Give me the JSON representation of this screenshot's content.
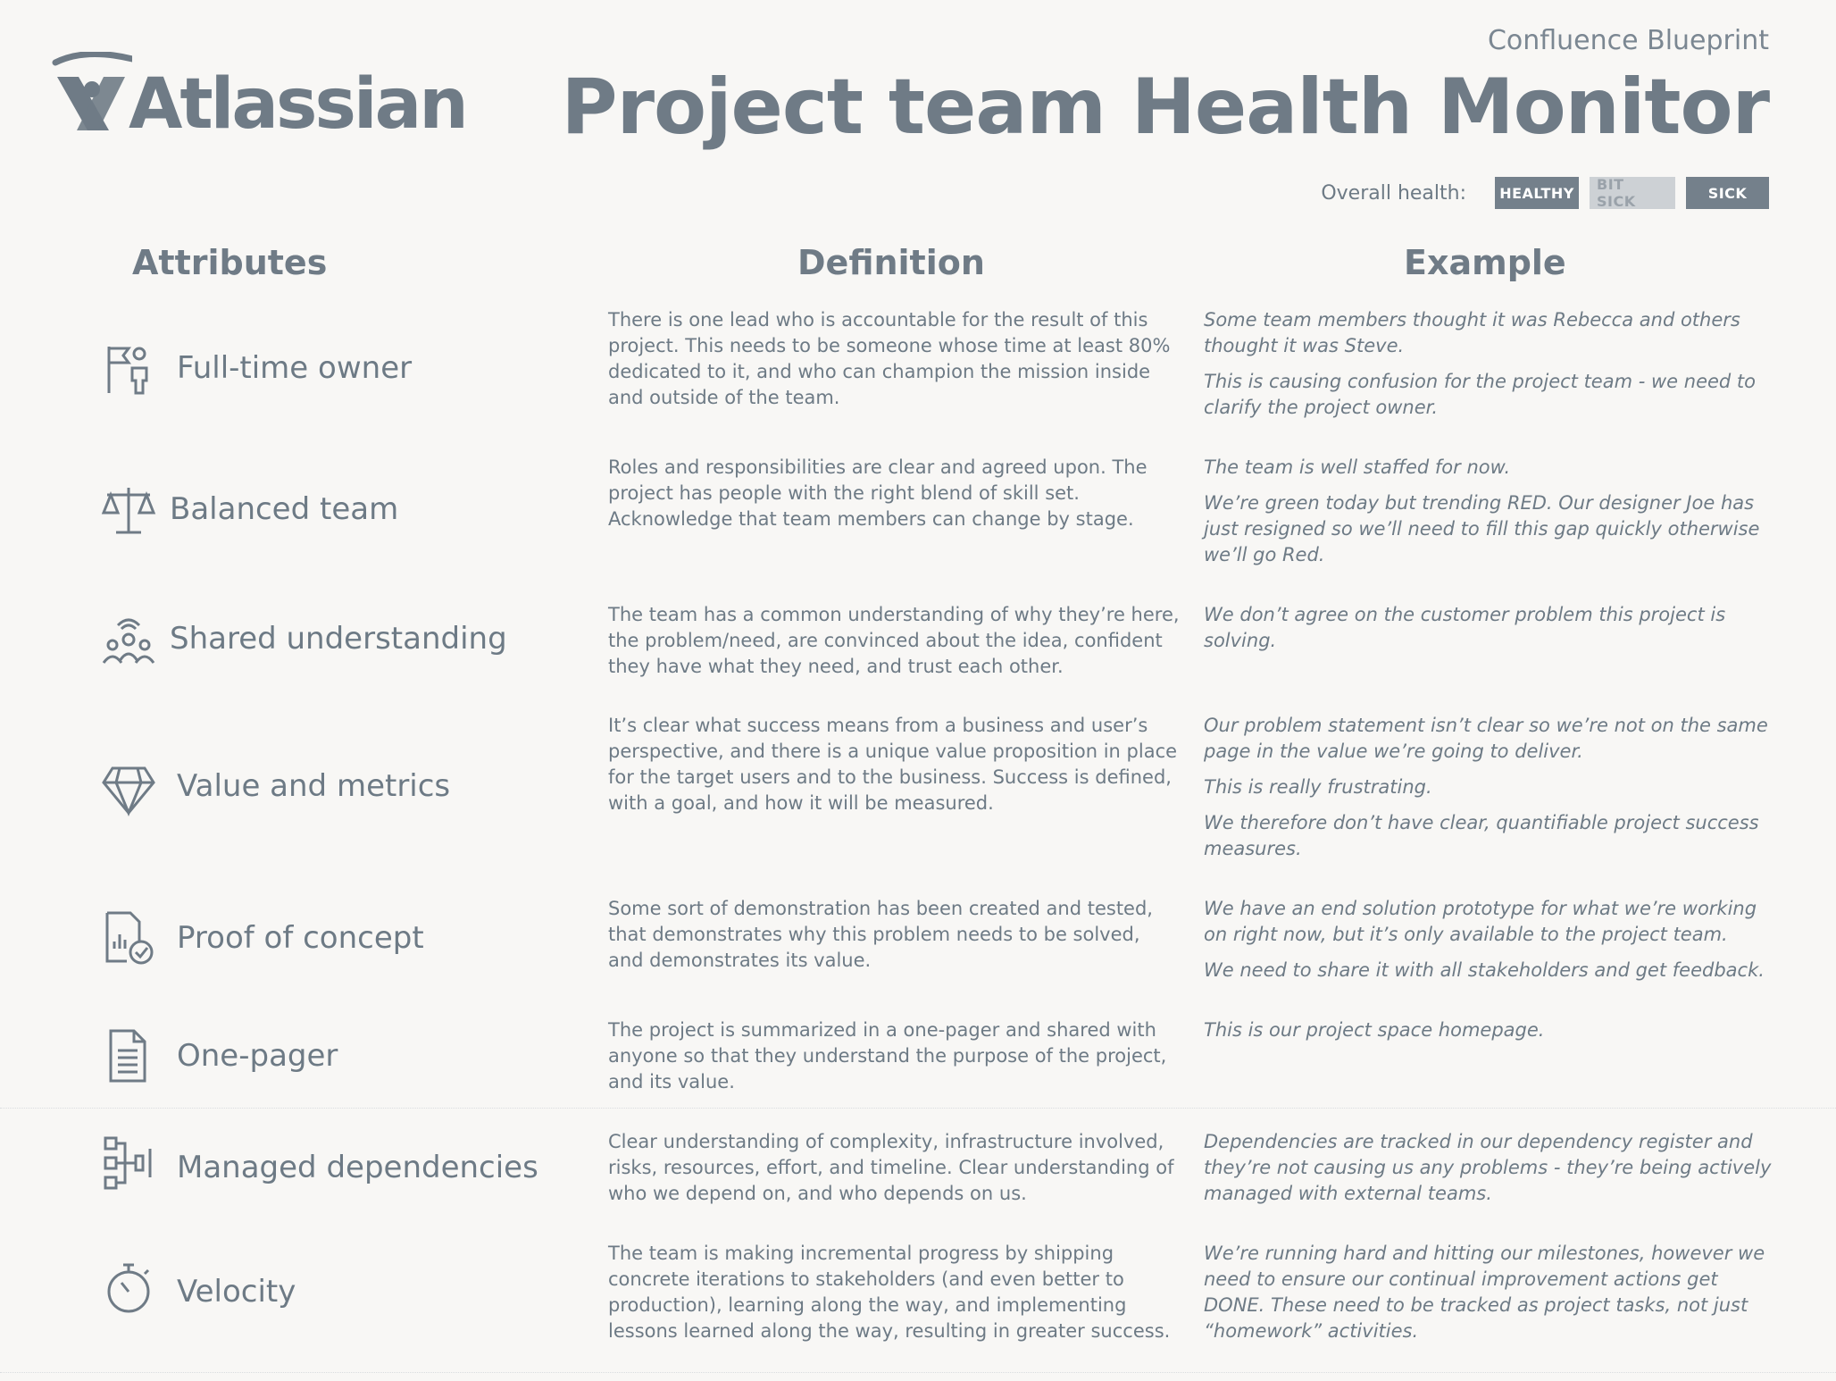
{
  "brand": {
    "name": "Atlassian"
  },
  "header": {
    "blueprint": "Confluence Blueprint",
    "title": "Project team Health Monitor",
    "health_label": "Overall health:",
    "health_options": [
      "HEALTHY",
      "BIT SICK",
      "SICK"
    ]
  },
  "columns": {
    "attributes": "Attributes",
    "definition": "Definition",
    "example": "Example"
  },
  "rows": [
    {
      "icon": "flag-person-icon",
      "name": "Full-time owner",
      "definition": "There is one lead who is accountable for the result of this project. This needs to be someone whose time at least 80% dedicated to it, and who can champion the mission inside and outside of the team.",
      "examples": [
        "Some team members thought it was Rebecca and others thought it was Steve.",
        "This is causing confusion for the project team - we need to clarify the project owner."
      ]
    },
    {
      "icon": "scales-icon",
      "name": "Balanced team",
      "definition": "Roles and responsibilities are clear and agreed upon. The project has people with the right blend of skill set. Acknowledge that team members can change by stage.",
      "examples": [
        "The team is well staffed for now.",
        "We’re green today but trending RED. Our designer Joe has just resigned so we’ll need to fill this gap quickly otherwise we’ll go Red."
      ]
    },
    {
      "icon": "group-icon",
      "name": "Shared understanding",
      "definition": "The team has a common understanding of why they’re here, the problem/need, are convinced about the idea, confident they have what they need, and trust each other.",
      "examples": [
        "We don’t agree on the customer problem this project is solving."
      ]
    },
    {
      "icon": "diamond-icon",
      "name": "Value and metrics",
      "definition": "It’s clear what success means from a business and user’s perspective, and there is a unique value proposition in place for the target users and to the business. Success is defined, with a goal, and how it will be measured.",
      "examples": [
        "Our problem statement isn’t clear so we’re not on the same page in the value we’re going to deliver.",
        "This is really frustrating.",
        "We therefore don’t have clear, quantifiable project success measures."
      ]
    },
    {
      "icon": "document-check-icon",
      "name": "Proof of concept",
      "definition": "Some sort of demonstration has been created and tested, that demonstrates why this problem needs to be solved, and demonstrates its value.",
      "examples": [
        "We have an end solution prototype for what we’re working on right now, but it’s only available to the project team.",
        "We need to share it with all stakeholders and get feedback."
      ]
    },
    {
      "icon": "document-icon",
      "name": "One-pager",
      "definition": "The project is summarized in a one-pager and shared with anyone so that they understand the purpose of the project, and its value.",
      "examples": [
        "This is our project space homepage."
      ]
    },
    {
      "icon": "dependencies-icon",
      "name": "Managed dependencies",
      "definition": "Clear understanding of complexity, infrastructure involved, risks, resources, effort, and timeline. Clear understanding of who we depend on, and who depends on us.",
      "examples": [
        "Dependencies are tracked in our dependency register and they’re not causing us any problems - they’re being actively managed with external teams."
      ]
    },
    {
      "icon": "stopwatch-icon",
      "name": "Velocity",
      "definition": "The team is making incremental progress by shipping concrete iterations to stakeholders (and even better to production), learning along the way, and implementing lessons learned along the way, resulting in greater success.",
      "examples": [
        "We’re running hard and hitting our milestones, however we need to ensure our continual improvement actions get DONE. These need to be tracked as project tasks, not just “homework” activities."
      ]
    }
  ]
}
